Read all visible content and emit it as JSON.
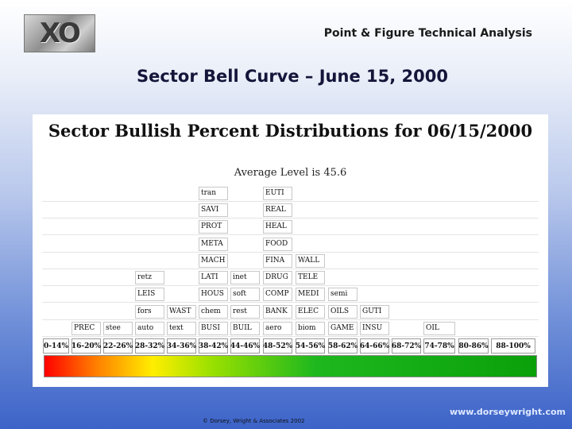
{
  "logo_text": "XO",
  "header_title": "Point & Figure Technical Analysis",
  "slide_title": "Sector Bell Curve – June 15, 2000",
  "chart": {
    "title": "Sector Bullish Percent Distributions for 06/15/2000",
    "average": "Average Level is 45.6"
  },
  "chart_data": {
    "type": "table",
    "title": "Sector Bullish Percent Distributions for 06/15/2000",
    "subtitle": "Average Level is 45.6",
    "ranges": [
      "0-14%",
      "16-20%",
      "22-26%",
      "28-32%",
      "34-36%",
      "38-42%",
      "44-46%",
      "48-52%",
      "54-56%",
      "58-62%",
      "64-66%",
      "68-72%",
      "74-78%",
      "80-86%",
      "88-100%"
    ],
    "columns": [
      [],
      [
        "PREC"
      ],
      [
        "stee"
      ],
      [
        "auto",
        "fors",
        "LEIS",
        "retz"
      ],
      [
        "text",
        "WAST"
      ],
      [
        "BUSI",
        "chem",
        "HOUS",
        "LATI",
        "MACH",
        "META",
        "PROT",
        "SAVI",
        "tran"
      ],
      [
        "BUIL",
        "rest",
        "soft",
        "inet"
      ],
      [
        "aero",
        "BANK",
        "COMP",
        "DRUG",
        "FINA",
        "FOOD",
        "HEAL",
        "REAL",
        "EUTI"
      ],
      [
        "biom",
        "ELEC",
        "MEDI",
        "TELE",
        "WALL"
      ],
      [
        "GAME",
        "OILS",
        "semi"
      ],
      [
        "INSU",
        "GUTI"
      ],
      [],
      [
        "OIL"
      ],
      [],
      []
    ]
  },
  "footer": {
    "copyright": "© Dorsey, Wright & Associates 2002",
    "url": "www.dorseywright.com"
  }
}
